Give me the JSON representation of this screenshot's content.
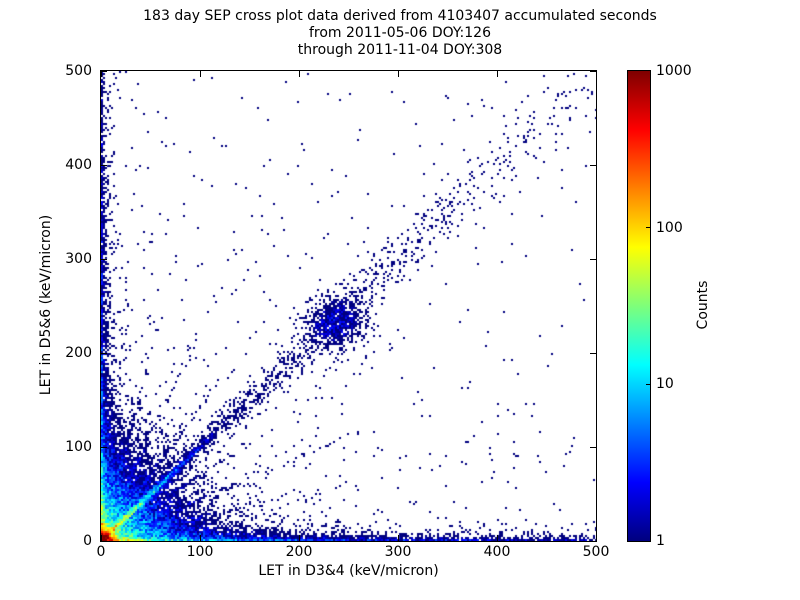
{
  "title": {
    "line1": "183 day SEP cross plot data derived from 4103407 accumulated seconds",
    "line2": "from 2011-05-06 DOY:126",
    "line3": "through 2011-11-04 DOY:308"
  },
  "chart_data": {
    "type": "heatmap",
    "subtype": "2D-histogram cross plot, log color scale, jet colormap, white background for empty bins",
    "title": "183 day SEP cross plot data derived from 4103407 accumulated seconds\nfrom 2011-05-06 DOY:126\nthrough 2011-11-04 DOY:308",
    "xlabel": "LET in D3&4 (keV/micron)",
    "ylabel": "LET in D5&6 (keV/micron)",
    "xlim": [
      0,
      500
    ],
    "ylim": [
      0,
      500
    ],
    "xticks": [
      0,
      100,
      200,
      300,
      400,
      500
    ],
    "yticks": [
      0,
      100,
      200,
      300,
      400,
      500
    ],
    "grid": false,
    "tick_direction": "in",
    "colorbar": {
      "label": "Counts",
      "scale": "log",
      "min": 1,
      "max": 1000,
      "ticks": [
        1,
        10,
        100,
        1000
      ],
      "colormap": "jet"
    },
    "features": [
      {
        "name": "origin-hotspot",
        "type": "radial",
        "amp": 1500,
        "scale": 5,
        "power": 1.3,
        "note": "saturated dark-red/red core at (0,0) reaching ~1000 counts"
      },
      {
        "name": "origin-halo",
        "type": "radial",
        "amp": 40,
        "scale": 9,
        "power": 1.2,
        "note": "yellow-green-cyan halo around the core"
      },
      {
        "name": "corner-cloud",
        "type": "corner-cloud",
        "amp": 35,
        "scale": 30,
        "note": "dense blue speckle cloud for LET3&4 + LET5&6 < ~150"
      },
      {
        "name": "main-diagonal-streak",
        "type": "ray",
        "angleDeg": 45,
        "amp": 160,
        "decayLen": 28,
        "width": 2.2,
        "note": "bright yellow-green-cyan streak along y=x out to ~60 keV/micron"
      },
      {
        "name": "secondary-radial-streaks",
        "type": "ray-set",
        "anglesDeg": [
          14,
          24,
          35,
          55,
          66,
          76
        ],
        "amp": 2.2,
        "decayLen": 70,
        "width": 2.0,
        "note": "faint blue radial streaks fanning out of the origin"
      },
      {
        "name": "diagonal-correlation-band",
        "type": "diagonal-band",
        "amp": 0.9,
        "widthBase": 7,
        "widthSlope": 0.04,
        "decayLen": 250,
        "note": "sparse blue band along y=x extending past (400,400)"
      },
      {
        "name": "heavy-ion-cluster",
        "type": "gaussian-blob",
        "center": [
          238,
          232
        ],
        "amp": 1.3,
        "sigma": 16,
        "note": "dense blue cluster on the diagonal near (238,232)"
      },
      {
        "name": "x-axis-band",
        "type": "axis-band",
        "axis": "x",
        "strength": 1.0,
        "lineAmps": [
          350,
          40,
          3,
          0.9
        ],
        "lineScales": [
          10,
          35,
          150,
          600
        ],
        "widthBase": 2.2,
        "widthExtra": 3,
        "widthDecay": 15,
        "halo": [
          [
            2.5,
            5,
            400
          ],
          [
            8,
            8,
            70
          ]
        ],
        "note": "hot red-orange-yellow-cyan line along y=0 fading to blue speckle out to x=500"
      },
      {
        "name": "y-axis-band",
        "type": "axis-band",
        "axis": "y",
        "strength": 0.75,
        "lineAmps": [
          350,
          40,
          3,
          0.9
        ],
        "lineScales": [
          10,
          35,
          150,
          600
        ],
        "widthBase": 2.2,
        "widthExtra": 3,
        "widthDecay": 15,
        "halo": [
          [
            2.5,
            5,
            400
          ],
          [
            8,
            8,
            70
          ]
        ],
        "note": "same structure along x=0 up to y=500, slightly weaker"
      },
      {
        "name": "uniform-background",
        "type": "background",
        "terms": [
          [
            0.02,
            300
          ],
          [
            0.004,
            900
          ]
        ],
        "note": "isolated single-count dark blue bins thinning toward upper right"
      }
    ]
  }
}
